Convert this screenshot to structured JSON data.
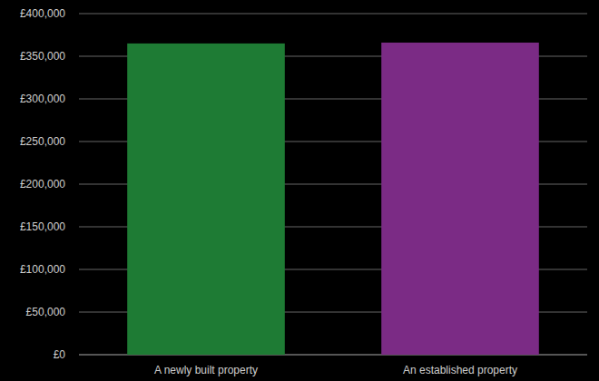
{
  "chart_data": {
    "type": "bar",
    "categories": [
      "A newly built property",
      "An established property"
    ],
    "values": [
      365000,
      366000
    ],
    "colors": [
      "#1e7b34",
      "#7b2b85"
    ],
    "ylim": [
      0,
      400000
    ],
    "yticks": [
      {
        "value": 0,
        "label": "£0"
      },
      {
        "value": 50000,
        "label": "£50,000"
      },
      {
        "value": 100000,
        "label": "£100,000"
      },
      {
        "value": 150000,
        "label": "£150,000"
      },
      {
        "value": 200000,
        "label": "£200,000"
      },
      {
        "value": 250000,
        "label": "£250,000"
      },
      {
        "value": 300000,
        "label": "£300,000"
      },
      {
        "value": 350000,
        "label": "£350,000"
      },
      {
        "value": 400000,
        "label": "£400,000"
      }
    ],
    "grid": true
  }
}
